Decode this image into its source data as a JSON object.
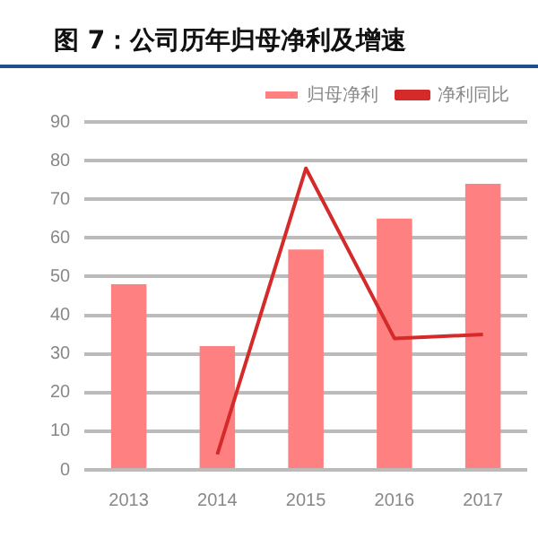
{
  "chart_data": {
    "type": "bar",
    "title": "图 7：公司历年归母净利及增速",
    "categories": [
      "2013",
      "2014",
      "2015",
      "2016",
      "2017"
    ],
    "series": [
      {
        "name": "归母净利",
        "color": "#ff8080",
        "values": [
          48,
          32,
          57,
          65,
          74
        ]
      },
      {
        "name": "净利同比",
        "type": "line",
        "color": "#d42a2a",
        "values": [
          null,
          4,
          78,
          34,
          35
        ]
      }
    ],
    "ylim": [
      0,
      90
    ],
    "yticks": [
      0,
      10,
      20,
      30,
      40,
      50,
      60,
      70,
      80,
      90
    ],
    "grid": "y",
    "legend": "top right",
    "marker": "none"
  }
}
